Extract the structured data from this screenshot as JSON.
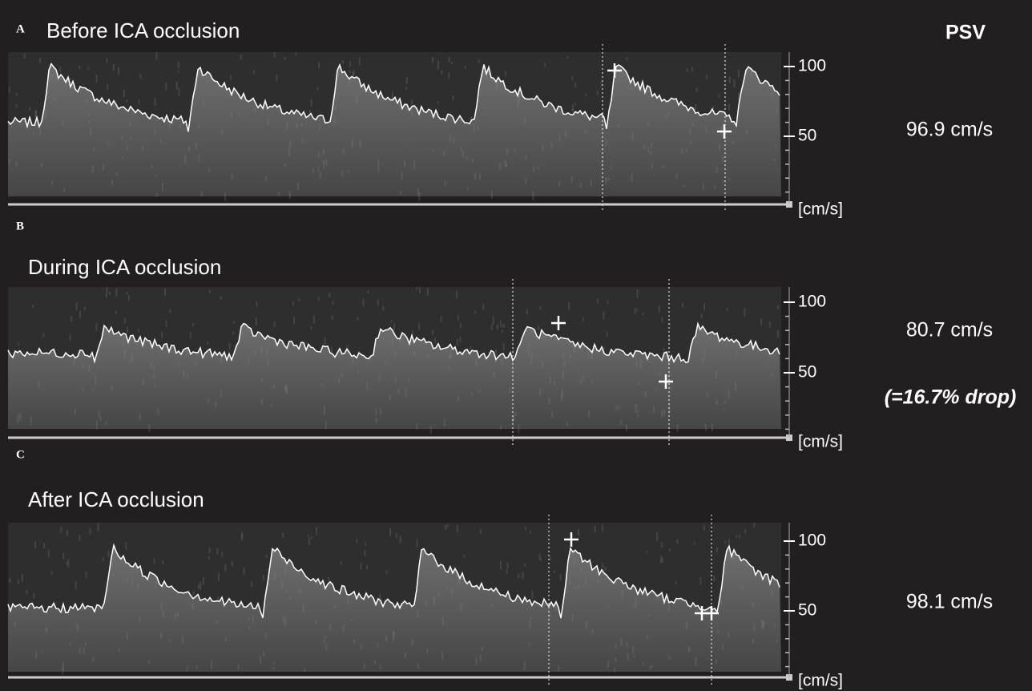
{
  "header": {
    "title": "PSV"
  },
  "panels": [
    {
      "letter": "A",
      "title": "Before ICA occlusion",
      "ticks": [
        "100",
        "50"
      ],
      "unit": "[cm/s]",
      "psv": "96.9 cm/s"
    },
    {
      "letter": "B",
      "title": "During ICA occlusion",
      "ticks": [
        "100",
        "50"
      ],
      "unit": "[cm/s]",
      "psv": "80.7 cm/s",
      "note": "(=16.7% drop)"
    },
    {
      "letter": "C",
      "title": "After ICA occlusion",
      "ticks": [
        "100",
        "50"
      ],
      "unit": "[cm/s]",
      "psv": "98.1 cm/s"
    }
  ]
}
